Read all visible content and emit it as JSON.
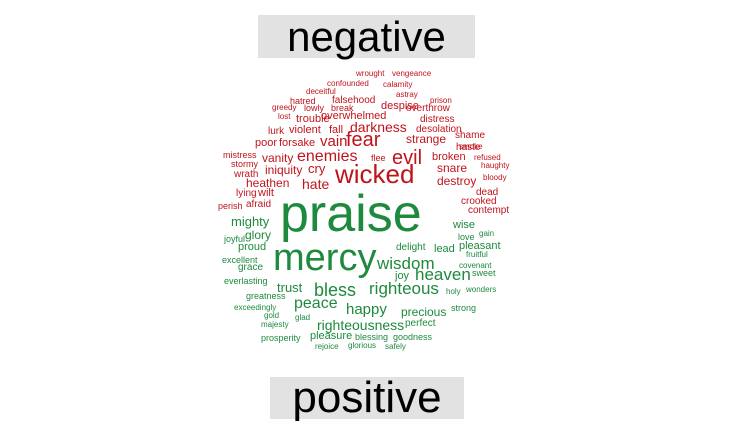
{
  "title_negative": "negative",
  "title_positive": "positive",
  "colors": {
    "negative": "#c0141c",
    "positive": "#1e8a3e",
    "label_bg": "#e2e2e2"
  },
  "cloud": {
    "negative": [
      "wrought",
      "vengeance",
      "confounded",
      "calamity",
      "deceitful",
      "astray",
      "hatred",
      "falsehood",
      "prison",
      "greedy",
      "lowly",
      "break",
      "despise",
      "overthrow",
      "lost",
      "overwhelmed",
      "distress",
      "trouble",
      "darkness",
      "desolation",
      "lurk",
      "violent",
      "fall",
      "shame",
      "strange",
      "smoke",
      "poor",
      "forsake",
      "vain",
      "fear",
      "haste",
      "mistress",
      "enemies",
      "evil",
      "broken",
      "refused",
      "stormy",
      "vanity",
      "flee",
      "haughty",
      "iniquity",
      "cry",
      "snare",
      "wrath",
      "wicked",
      "bloody",
      "heathen",
      "hate",
      "destroy",
      "lying",
      "wilt",
      "dead",
      "perish",
      "afraid",
      "crooked",
      "contempt"
    ],
    "positive": [
      "praise",
      "mercy",
      "wise",
      "mighty",
      "gain",
      "glory",
      "love",
      "joyful",
      "delight",
      "lead",
      "pleasant",
      "proud",
      "wisdom",
      "fruitful",
      "excellent",
      "covenant",
      "grace",
      "joy",
      "heaven",
      "sweet",
      "everlasting",
      "trust",
      "bless",
      "righteous",
      "holy",
      "wonders",
      "greatness",
      "peace",
      "exceedingly",
      "strong",
      "happy",
      "precious",
      "gold",
      "glad",
      "perfect",
      "majesty",
      "righteousness",
      "prosperity",
      "pleasure",
      "blessing",
      "goodness",
      "rejoice",
      "glorious",
      "safely"
    ]
  }
}
